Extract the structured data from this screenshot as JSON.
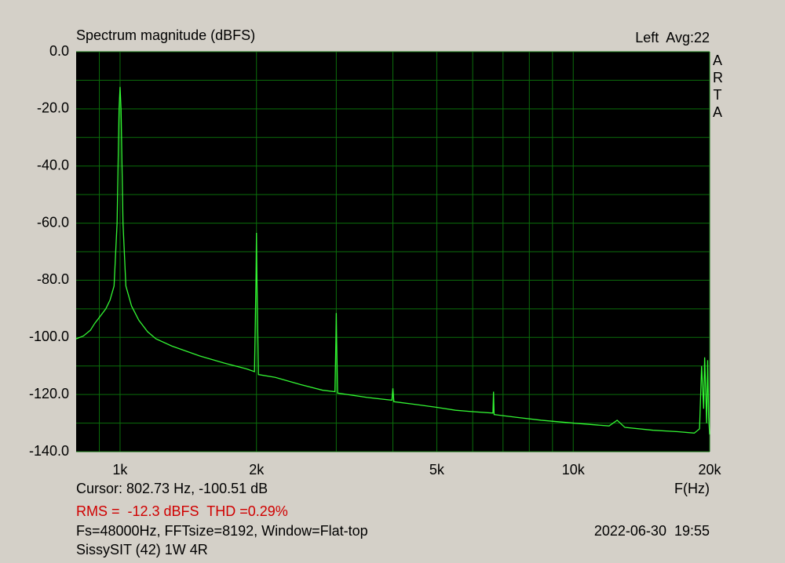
{
  "chart_data": {
    "type": "line",
    "title": "Spectrum magnitude (dBFS)",
    "channel": "Left  Avg:22",
    "logo": "ARTA",
    "xlabel": "F(Hz)",
    "cursor": "Cursor: 802.73 Hz, -100.51 dB",
    "measurement": "RMS =  -12.3 dBFS  THD =0.29%",
    "settings": "Fs=48000Hz, FFTsize=8192, Window=Flat-top",
    "timestamp": "2022-06-30  19:55",
    "note": "SissySIT (42) 1W 4R",
    "xscale": "log",
    "xlim": [
      800,
      20000
    ],
    "ylim": [
      -140,
      0
    ],
    "xticks": [
      {
        "value": 1000,
        "label": "1k"
      },
      {
        "value": 2000,
        "label": "2k"
      },
      {
        "value": 5000,
        "label": "5k"
      },
      {
        "value": 10000,
        "label": "10k"
      },
      {
        "value": 20000,
        "label": "20k"
      }
    ],
    "xminor": [
      900,
      3000,
      4000,
      6000,
      7000,
      8000,
      9000
    ],
    "yticks": [
      {
        "value": 0,
        "label": "0.0"
      },
      {
        "value": -20,
        "label": "-20.0"
      },
      {
        "value": -40,
        "label": "-40.0"
      },
      {
        "value": -60,
        "label": "-60.0"
      },
      {
        "value": -80,
        "label": "-80.0"
      },
      {
        "value": -100,
        "label": "-100.0"
      },
      {
        "value": -120,
        "label": "-120.0"
      },
      {
        "value": -140,
        "label": "-140.0"
      }
    ],
    "yminor": [
      -10,
      -30,
      -50,
      -70,
      -90,
      -110,
      -130
    ],
    "grid": true,
    "color": "#33f533",
    "x": [
      800,
      830,
      860,
      880,
      900,
      930,
      950,
      970,
      985,
      995,
      1000,
      1005,
      1015,
      1030,
      1060,
      1100,
      1150,
      1200,
      1300,
      1500,
      1700,
      1900,
      1980,
      1995,
      2000,
      2005,
      2020,
      2200,
      2500,
      2800,
      2980,
      2995,
      3000,
      3005,
      3020,
      3500,
      3980,
      4000,
      4020,
      4500,
      5000,
      5500,
      6000,
      6650,
      6670,
      6690,
      7500,
      8500,
      10000,
      12000,
      12500,
      13000,
      15000,
      17000,
      18500,
      19000,
      19200,
      19400,
      19500,
      19700,
      19800,
      19900,
      20000
    ],
    "values": [
      -100.5,
      -99.5,
      -97.5,
      -95,
      -93,
      -90,
      -87,
      -82,
      -60,
      -20,
      -12.3,
      -20,
      -60,
      -82,
      -89,
      -94,
      -98,
      -100.5,
      -103,
      -106.5,
      -109,
      -111,
      -112,
      -80,
      -63.4,
      -80,
      -113,
      -114,
      -116.5,
      -118.5,
      -119,
      -100,
      -91.5,
      -100,
      -119.5,
      -121,
      -122,
      -117.8,
      -122.5,
      -123.5,
      -124.5,
      -125.5,
      -126,
      -126.5,
      -119,
      -127,
      -128,
      -129,
      -130,
      -131,
      -129,
      -131.5,
      -132.5,
      -133,
      -133.5,
      -132,
      -110,
      -125,
      -107,
      -130,
      -108,
      -128,
      -134
    ]
  }
}
